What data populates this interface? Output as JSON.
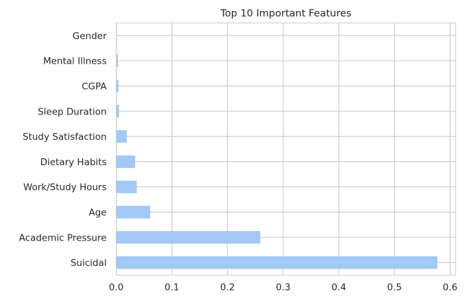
{
  "chart_data": {
    "type": "bar",
    "orientation": "horizontal",
    "title": "Top 10 Important Features",
    "xlabel": "",
    "ylabel": "",
    "xlim": [
      0,
      0.61
    ],
    "x_ticks": [
      0.0,
      0.1,
      0.2,
      0.3,
      0.4,
      0.5,
      0.6
    ],
    "x_tick_labels": [
      "0.0",
      "0.1",
      "0.2",
      "0.3",
      "0.4",
      "0.5",
      "0.6"
    ],
    "grid": true,
    "categories": [
      "Suicidal",
      "Academic Pressure",
      "Age",
      "Work/Study Hours",
      "Dietary Habits",
      "Study Satisfaction",
      "Sleep Duration",
      "CGPA",
      "Mental Illness",
      "Gender"
    ],
    "values": [
      0.577,
      0.259,
      0.061,
      0.037,
      0.034,
      0.019,
      0.005,
      0.004,
      0.003,
      0.001
    ],
    "bar_color": "#a1c9f4"
  }
}
